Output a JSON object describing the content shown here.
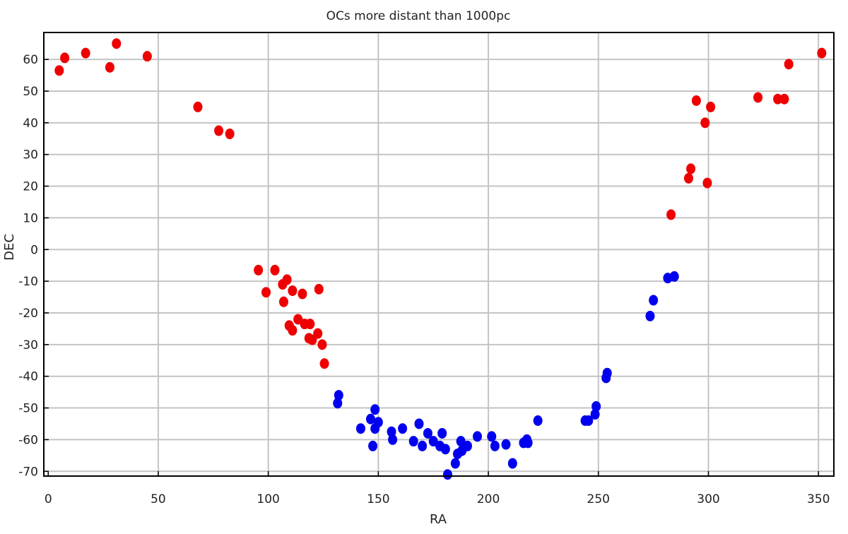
{
  "chart_data": {
    "type": "scatter",
    "title": "OCs more distant than 1000pc",
    "xlabel": "RA",
    "ylabel": "DEC",
    "xlim": [
      -2,
      357
    ],
    "ylim": [
      -71.5,
      68.5
    ],
    "grid": true,
    "legend": "none",
    "x_ticks": [
      0,
      50,
      100,
      150,
      200,
      250,
      300,
      350
    ],
    "y_ticks": [
      60,
      50,
      40,
      30,
      20,
      10,
      0,
      -10,
      -20,
      -30,
      -40,
      -50,
      -60,
      -70
    ],
    "x_tick_labels": [
      "0",
      "50",
      "100",
      "150",
      "200",
      "250",
      "300",
      "350"
    ],
    "y_tick_labels": [
      "60",
      "50",
      "40",
      "30",
      "20",
      "10",
      "0",
      "-10",
      "-20",
      "-30",
      "-40",
      "-50",
      "-60",
      "-70"
    ],
    "series": [
      {
        "color": "#ee0000",
        "points": [
          [
            5.0,
            56.5
          ],
          [
            7.5,
            60.5
          ],
          [
            17.0,
            62.0
          ],
          [
            28.0,
            57.5
          ],
          [
            31.0,
            65.0
          ],
          [
            45.0,
            61.0
          ],
          [
            68.0,
            45.0
          ],
          [
            77.5,
            37.5
          ],
          [
            82.5,
            36.5
          ],
          [
            95.5,
            -6.5
          ],
          [
            99.0,
            -13.5
          ],
          [
            103.0,
            -6.5
          ],
          [
            106.5,
            -11.0
          ],
          [
            107.0,
            -16.5
          ],
          [
            108.5,
            -9.5
          ],
          [
            109.5,
            -24.0
          ],
          [
            111.0,
            -13.0
          ],
          [
            111.0,
            -25.5
          ],
          [
            113.5,
            -22.0
          ],
          [
            115.5,
            -14.0
          ],
          [
            116.5,
            -23.5
          ],
          [
            118.5,
            -28.0
          ],
          [
            119.0,
            -23.5
          ],
          [
            120.0,
            -28.5
          ],
          [
            122.5,
            -26.5
          ],
          [
            123.0,
            -12.5
          ],
          [
            124.5,
            -30.0
          ],
          [
            125.5,
            -36.0
          ],
          [
            283.0,
            11.0
          ],
          [
            291.0,
            22.5
          ],
          [
            292.0,
            25.5
          ],
          [
            294.5,
            47.0
          ],
          [
            298.5,
            40.0
          ],
          [
            299.5,
            21.0
          ],
          [
            301.0,
            45.0
          ],
          [
            322.5,
            48.0
          ],
          [
            331.5,
            47.5
          ],
          [
            334.5,
            47.5
          ],
          [
            336.5,
            58.5
          ],
          [
            351.5,
            62.0
          ]
        ]
      },
      {
        "color": "#0000ee",
        "points": [
          [
            131.5,
            -48.5
          ],
          [
            132.0,
            -46.0
          ],
          [
            142.0,
            -56.5
          ],
          [
            146.5,
            -53.5
          ],
          [
            147.5,
            -62.0
          ],
          [
            148.5,
            -50.5
          ],
          [
            148.5,
            -56.5
          ],
          [
            150.0,
            -54.5
          ],
          [
            156.0,
            -57.5
          ],
          [
            156.5,
            -60.0
          ],
          [
            161.0,
            -56.5
          ],
          [
            166.0,
            -60.5
          ],
          [
            168.5,
            -55.0
          ],
          [
            170.0,
            -62.0
          ],
          [
            172.5,
            -58.0
          ],
          [
            175.0,
            -60.5
          ],
          [
            178.0,
            -62.0
          ],
          [
            179.0,
            -58.0
          ],
          [
            180.5,
            -63.0
          ],
          [
            181.5,
            -71.0
          ],
          [
            185.0,
            -67.5
          ],
          [
            186.0,
            -64.5
          ],
          [
            187.5,
            -60.5
          ],
          [
            188.0,
            -63.5
          ],
          [
            190.5,
            -62.0
          ],
          [
            195.0,
            -59.0
          ],
          [
            201.5,
            -59.0
          ],
          [
            203.0,
            -62.0
          ],
          [
            208.0,
            -61.5
          ],
          [
            211.0,
            -67.5
          ],
          [
            216.0,
            -61.0
          ],
          [
            217.5,
            -60.0
          ],
          [
            218.0,
            -61.0
          ],
          [
            222.5,
            -54.0
          ],
          [
            244.0,
            -54.0
          ],
          [
            245.5,
            -54.0
          ],
          [
            248.5,
            -52.0
          ],
          [
            249.0,
            -49.5
          ],
          [
            253.5,
            -40.5
          ],
          [
            254.0,
            -39.0
          ],
          [
            273.5,
            -21.0
          ],
          [
            275.0,
            -16.0
          ],
          [
            281.5,
            -9.0
          ],
          [
            284.5,
            -8.5
          ]
        ]
      }
    ]
  }
}
